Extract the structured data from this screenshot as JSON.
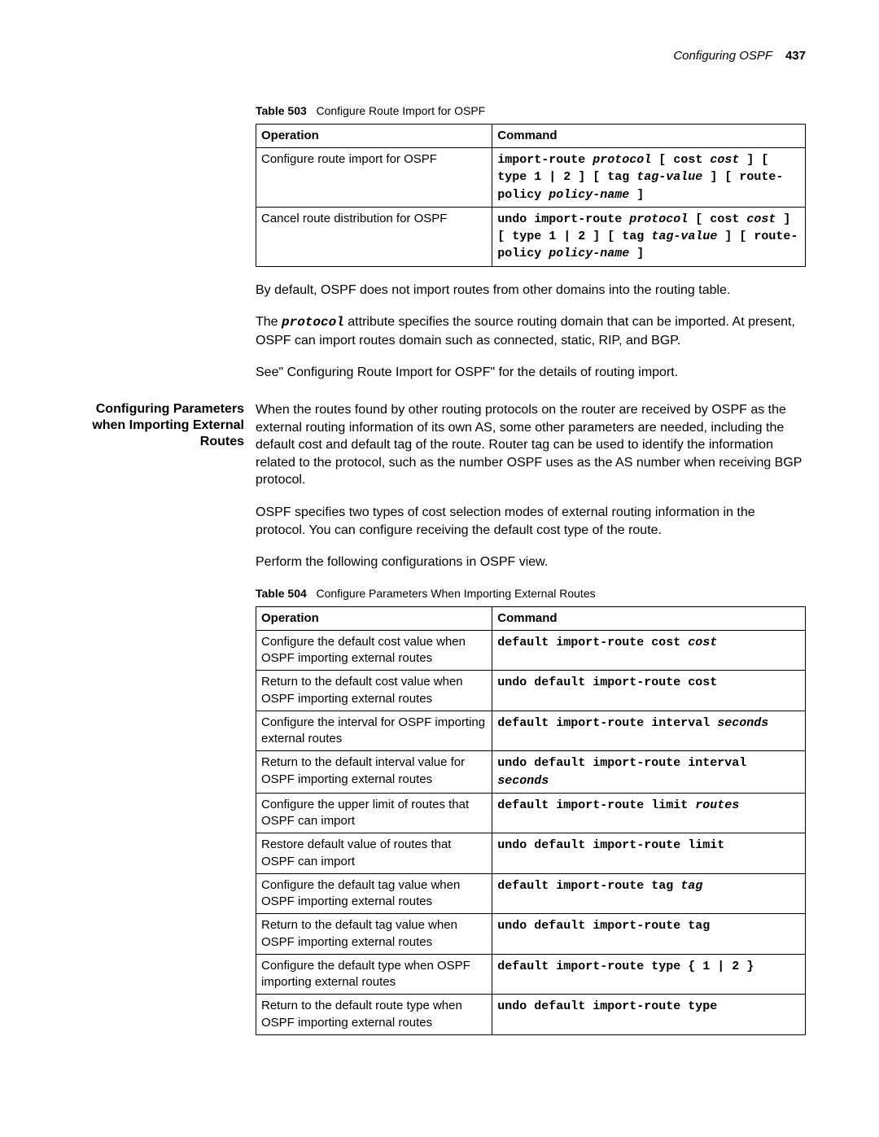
{
  "header": {
    "title": "Configuring OSPF",
    "page": "437"
  },
  "table503": {
    "caption_label": "Table 503",
    "caption_text": "Configure Route Import for OSPF",
    "head_op": "Operation",
    "head_cmd": "Command",
    "rows": [
      {
        "op": "Configure route import for OSPF",
        "cmd_parts": [
          {
            "t": "import-route ",
            "c": "mono-bold"
          },
          {
            "t": "protocol",
            "c": "mono-ital"
          },
          {
            "t": " [ ",
            "c": "mono-bold"
          },
          {
            "t": "cost ",
            "c": "mono-bold"
          },
          {
            "t": "cost",
            "c": "mono-ital"
          },
          {
            "t": " ] [ ",
            "c": "mono-bold"
          },
          {
            "t": "type 1 | 2",
            "c": "mono-bold"
          },
          {
            "t": " ] [ ",
            "c": "mono-bold"
          },
          {
            "t": "tag ",
            "c": "mono-bold"
          },
          {
            "t": "tag-value",
            "c": "mono-ital"
          },
          {
            "t": " ] [ ",
            "c": "mono-bold"
          },
          {
            "t": "route-policy ",
            "c": "mono-bold"
          },
          {
            "t": "policy-name",
            "c": "mono-ital"
          },
          {
            "t": " ]",
            "c": "mono-bold"
          }
        ]
      },
      {
        "op": "Cancel route distribution for OSPF",
        "cmd_parts": [
          {
            "t": "undo import-route ",
            "c": "mono-bold"
          },
          {
            "t": "protocol",
            "c": "mono-ital"
          },
          {
            "t": " [ ",
            "c": "mono-bold"
          },
          {
            "t": "cost ",
            "c": "mono-bold"
          },
          {
            "t": "cost",
            "c": "mono-ital"
          },
          {
            "t": " ] [ ",
            "c": "mono-bold"
          },
          {
            "t": "type 1 | 2",
            "c": "mono-bold"
          },
          {
            "t": " ] [ ",
            "c": "mono-bold"
          },
          {
            "t": "tag ",
            "c": "mono-bold"
          },
          {
            "t": "tag-value",
            "c": "mono-ital"
          },
          {
            "t": " ] [ ",
            "c": "mono-bold"
          },
          {
            "t": "route-policy ",
            "c": "mono-bold"
          },
          {
            "t": "policy-name",
            "c": "mono-ital"
          },
          {
            "t": " ]",
            "c": "mono-bold"
          }
        ]
      }
    ]
  },
  "para1": "By default, OSPF does not import routes from other domains into the routing table.",
  "para2_pre": "The ",
  "para2_code": "protocol",
  "para2_post": " attribute specifies the source routing domain that can be imported. At present, OSPF can import routes domain such as connected, static, RIP, and BGP.",
  "para3": "See\" Configuring Route Import for OSPF\" for the details of routing import.",
  "section_heading": "Configuring Parameters when Importing External Routes",
  "para4": "When the routes found by other routing protocols on the router are received by OSPF as the external routing information of its own AS, some other parameters are needed, including the default cost and default tag of the route. Router tag can be used to identify the information related to the protocol, such as the number OSPF uses as the AS number when receiving BGP protocol.",
  "para5": "OSPF specifies two types of cost selection modes of external routing information in the protocol. You can configure receiving the default cost type of the route.",
  "para6": "Perform the following configurations in OSPF view.",
  "table504": {
    "caption_label": "Table 504",
    "caption_text": "Configure Parameters When Importing External Routes",
    "head_op": "Operation",
    "head_cmd": "Command",
    "rows": [
      {
        "op": "Configure the default cost value when OSPF importing external routes",
        "cmd_parts": [
          {
            "t": "default import-route cost ",
            "c": "mono-bold"
          },
          {
            "t": "cost",
            "c": "mono-ital"
          }
        ]
      },
      {
        "op": "Return to the default cost value when OSPF importing external routes",
        "cmd_parts": [
          {
            "t": "undo default import-route cost",
            "c": "mono-bold"
          }
        ]
      },
      {
        "op": "Configure the interval for OSPF importing external routes",
        "cmd_parts": [
          {
            "t": "default import-route interval ",
            "c": "mono-bold"
          },
          {
            "t": "seconds",
            "c": "mono-ital"
          }
        ]
      },
      {
        "op": "Return to the default interval value for OSPF importing external routes",
        "cmd_parts": [
          {
            "t": "undo default import-route interval ",
            "c": "mono-bold"
          },
          {
            "t": "seconds",
            "c": "mono-ital"
          }
        ]
      },
      {
        "op": "Configure the upper limit of routes that OSPF can import",
        "cmd_parts": [
          {
            "t": "default import-route limit ",
            "c": "mono-bold"
          },
          {
            "t": "routes",
            "c": "mono-ital"
          }
        ]
      },
      {
        "op": "Restore default value of routes that OSPF can import",
        "cmd_parts": [
          {
            "t": "undo default import-route limit",
            "c": "mono-bold"
          }
        ]
      },
      {
        "op": "Configure the default tag value when OSPF importing external routes",
        "cmd_parts": [
          {
            "t": "default import-route tag ",
            "c": "mono-bold"
          },
          {
            "t": "tag",
            "c": "mono-ital"
          }
        ]
      },
      {
        "op": "Return to the default tag value when OSPF importing external routes",
        "cmd_parts": [
          {
            "t": "undo default import-route tag",
            "c": "mono-bold"
          }
        ]
      },
      {
        "op": "Configure the default type when OSPF importing external routes",
        "cmd_parts": [
          {
            "t": "default import-route type { 1 | 2 }",
            "c": "mono-bold"
          }
        ]
      },
      {
        "op": "Return to the default route type when OSPF importing external routes",
        "cmd_parts": [
          {
            "t": "undo default import-route type",
            "c": "mono-bold"
          }
        ]
      }
    ]
  }
}
